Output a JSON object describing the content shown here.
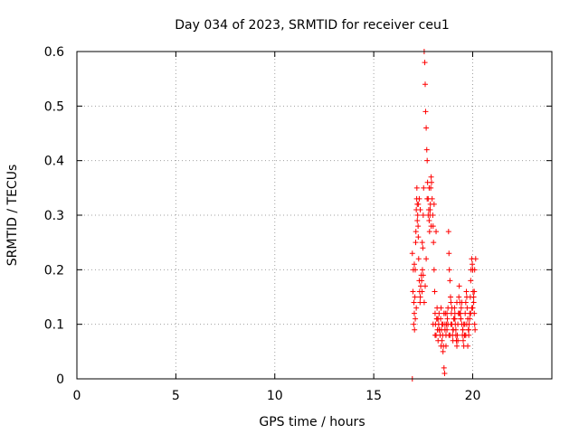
{
  "chart_data": {
    "type": "scatter",
    "title": "Day 034 of 2023, SRMTID for receiver ceu1",
    "xlabel": "GPS time / hours",
    "ylabel": "SRMTID / TECUs",
    "xlim": [
      0,
      24
    ],
    "ylim": [
      0,
      0.6
    ],
    "xticks": [
      0,
      5,
      10,
      15,
      20
    ],
    "yticks": [
      0,
      0.1,
      0.2,
      0.3,
      0.4,
      0.5,
      0.6
    ],
    "xtick_labels": [
      "0",
      "5",
      "10",
      "15",
      "20"
    ],
    "ytick_labels": [
      "0",
      "0.1",
      "0.2",
      "0.3",
      "0.4",
      "0.5",
      "0.6"
    ],
    "grid": true,
    "marker": "+",
    "color": "#ff0000",
    "series": [
      {
        "name": "ceu1",
        "x": [
          16.95,
          16.98,
          17.0,
          17.02,
          17.03,
          17.05,
          17.06,
          17.08,
          17.1,
          17.12,
          17.13,
          17.15,
          17.17,
          17.18,
          17.2,
          17.22,
          17.24,
          17.25,
          17.27,
          17.3,
          17.32,
          17.34,
          17.35,
          17.37,
          17.4,
          17.42,
          17.44,
          17.46,
          17.48,
          17.5,
          17.52,
          17.55,
          17.58,
          17.6,
          17.62,
          17.65,
          17.68,
          17.7,
          17.72,
          17.75,
          17.78,
          17.8,
          17.82,
          17.84,
          17.86,
          17.88,
          17.9,
          17.92,
          17.95,
          17.98,
          18.0,
          18.02,
          18.05,
          18.08,
          18.1,
          18.12,
          18.15,
          18.18,
          18.2,
          18.22,
          18.25,
          18.28,
          18.3,
          18.32,
          18.35,
          18.38,
          18.4,
          18.42,
          18.45,
          18.48,
          18.5,
          18.52,
          18.55,
          18.58,
          18.6,
          18.62,
          18.65,
          18.68,
          18.7,
          18.72,
          18.75,
          18.78,
          18.8,
          18.82,
          18.85,
          18.88,
          18.9,
          18.92,
          18.95,
          18.98,
          19.0,
          19.02,
          19.05,
          19.08,
          19.1,
          19.12,
          19.15,
          19.18,
          19.2,
          19.22,
          19.25,
          19.28,
          19.3,
          19.32,
          19.35,
          19.38,
          19.4,
          19.42,
          19.45,
          19.48,
          19.5,
          19.52,
          19.55,
          19.58,
          19.6,
          19.62,
          19.65,
          19.68,
          19.7,
          19.72,
          19.75,
          19.78,
          19.8,
          19.82,
          19.85,
          19.88,
          19.9,
          19.92,
          19.95,
          19.98,
          20.0,
          20.02,
          20.05,
          20.08,
          20.1,
          20.12,
          20.15,
          17.1,
          17.2,
          17.3,
          17.45,
          17.55,
          17.65,
          17.75,
          17.85,
          17.9,
          18.0,
          18.1,
          18.2,
          18.3,
          18.45,
          18.55,
          18.65,
          18.75,
          18.85,
          18.95,
          19.05,
          19.15,
          19.25,
          19.35,
          19.45,
          19.55,
          19.65,
          19.75,
          19.85,
          19.95,
          20.05,
          20.1,
          16.95,
          17.05,
          17.15,
          17.25,
          17.35,
          17.5,
          17.6,
          17.7,
          17.8,
          18.05,
          18.15,
          18.25,
          18.4,
          18.5,
          18.6,
          18.7,
          18.8,
          18.9,
          19.0,
          19.1,
          19.2,
          19.3,
          19.4,
          19.5,
          19.6,
          19.7,
          19.8,
          19.9,
          20.0,
          20.08
        ],
        "y": [
          0.23,
          0.16,
          0.2,
          0.1,
          0.14,
          0.12,
          0.09,
          0.15,
          0.2,
          0.25,
          0.27,
          0.31,
          0.33,
          0.35,
          0.32,
          0.3,
          0.28,
          0.26,
          0.22,
          0.18,
          0.16,
          0.14,
          0.15,
          0.17,
          0.19,
          0.18,
          0.16,
          0.2,
          0.24,
          0.3,
          0.35,
          0.6,
          0.58,
          0.54,
          0.49,
          0.46,
          0.42,
          0.4,
          0.36,
          0.33,
          0.31,
          0.29,
          0.27,
          0.3,
          0.32,
          0.35,
          0.37,
          0.36,
          0.33,
          0.3,
          0.28,
          0.25,
          0.2,
          0.16,
          0.12,
          0.1,
          0.08,
          0.11,
          0.13,
          0.09,
          0.07,
          0.1,
          0.12,
          0.09,
          0.08,
          0.11,
          0.06,
          0.09,
          0.1,
          0.08,
          0.05,
          0.06,
          0.02,
          0.01,
          0.1,
          0.12,
          0.08,
          0.1,
          0.09,
          0.11,
          0.13,
          0.27,
          0.23,
          0.2,
          0.18,
          0.15,
          0.14,
          0.12,
          0.1,
          0.08,
          0.07,
          0.09,
          0.11,
          0.13,
          0.12,
          0.1,
          0.08,
          0.07,
          0.06,
          0.08,
          0.1,
          0.12,
          0.15,
          0.17,
          0.14,
          0.12,
          0.11,
          0.13,
          0.1,
          0.08,
          0.09,
          0.07,
          0.06,
          0.08,
          0.1,
          0.12,
          0.14,
          0.16,
          0.15,
          0.13,
          0.11,
          0.09,
          0.08,
          0.1,
          0.12,
          0.15,
          0.18,
          0.2,
          0.22,
          0.21,
          0.2,
          0.16,
          0.14,
          0.12,
          0.1,
          0.09,
          0.22,
          0.11,
          0.29,
          0.33,
          0.25,
          0.14,
          0.22,
          0.3,
          0.31,
          0.28,
          0.1,
          0.08,
          0.11,
          0.09,
          0.07,
          0.12,
          0.06,
          0.1,
          0.08,
          0.13,
          0.11,
          0.09,
          0.07,
          0.12,
          0.14,
          0.1,
          0.08,
          0.06,
          0.11,
          0.13,
          0.15,
          0.2,
          0.0,
          0.21,
          0.13,
          0.32,
          0.31,
          0.19,
          0.17,
          0.33,
          0.35,
          0.32,
          0.27,
          0.11,
          0.13,
          0.1,
          0.09,
          0.12,
          0.08,
          0.1,
          0.09,
          0.11,
          0.14,
          0.12,
          0.11,
          0.09,
          0.08,
          0.1,
          0.09,
          0.12,
          0.13,
          0.16
        ]
      }
    ]
  }
}
